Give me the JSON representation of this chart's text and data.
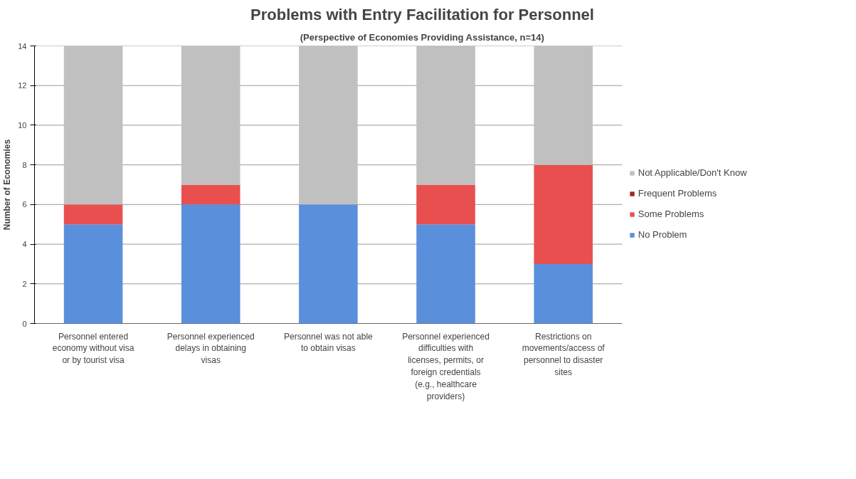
{
  "chart_data": {
    "type": "bar",
    "title": "Problems with Entry Facilitation for Personnel",
    "subtitle": "(Perspective of Economies Providing Assistance, n=14)",
    "ylabel": "Number of Economies",
    "categories": [
      "Personnel entered economy without visa or by tourist visa",
      "Personnel experienced delays in obtaining visas",
      "Personnel was not able to obtain visas",
      "Personnel experienced difficulties with licenses, permits, or foreign credentials (e.g., healthcare providers)",
      "Restrictions on movements/access of personnel to disaster sites"
    ],
    "stacked": true,
    "series": [
      {
        "name": "No Problem",
        "color": "#5a8fdc",
        "values": [
          5,
          6,
          6,
          5,
          3
        ]
      },
      {
        "name": "Some Problems",
        "color": "#e8504f",
        "values": [
          1,
          1,
          0,
          2,
          5
        ]
      },
      {
        "name": "Frequent Problems",
        "color": "#9e2a20",
        "values": [
          0,
          0,
          0,
          0,
          0
        ]
      },
      {
        "name": "Not Applicable/Don't Know",
        "color": "#c0c0c0",
        "values": [
          8,
          7,
          8,
          7,
          6
        ]
      }
    ],
    "ylim": [
      0,
      14
    ],
    "yticks": [
      0,
      2,
      4,
      6,
      8,
      10,
      12,
      14
    ],
    "grid": "y",
    "legend": "right"
  }
}
